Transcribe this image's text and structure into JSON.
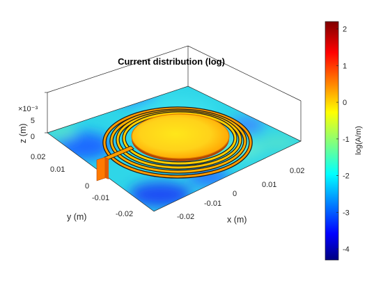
{
  "chart_data": {
    "type": "heatmap",
    "title": "Current distribution (log)",
    "xlabel": "x (m)",
    "ylabel": "y (m)",
    "zlabel": "z (m)",
    "z_exponent_label": "×10⁻³",
    "x_ticks": [
      "-0.02",
      "-0.01",
      "0",
      "0.01",
      "0.02"
    ],
    "y_ticks": [
      "-0.02",
      "-0.01",
      "0",
      "0.01",
      "0.02"
    ],
    "z_ticks": [
      "0",
      "5"
    ],
    "xlim": [
      -0.03,
      0.03
    ],
    "ylim": [
      -0.03,
      0.03
    ],
    "zlim": [
      0,
      0.005
    ],
    "colorbar": {
      "label": "log(A/m)",
      "colormap": "jet",
      "ticks": [
        "2",
        "1",
        "0",
        "-1",
        "-2",
        "-3",
        "-4"
      ],
      "range": [
        -4.3,
        2.2
      ]
    },
    "features": [
      {
        "name": "central disk",
        "log_current": 1.0
      },
      {
        "name": "spiral rings",
        "log_current": 0.5
      },
      {
        "name": "feed line",
        "log_current": 0.6
      },
      {
        "name": "feed port",
        "log_current": 0.6
      },
      {
        "name": "ground plane",
        "log_current_range": [
          -3.5,
          -1.5
        ]
      }
    ]
  }
}
